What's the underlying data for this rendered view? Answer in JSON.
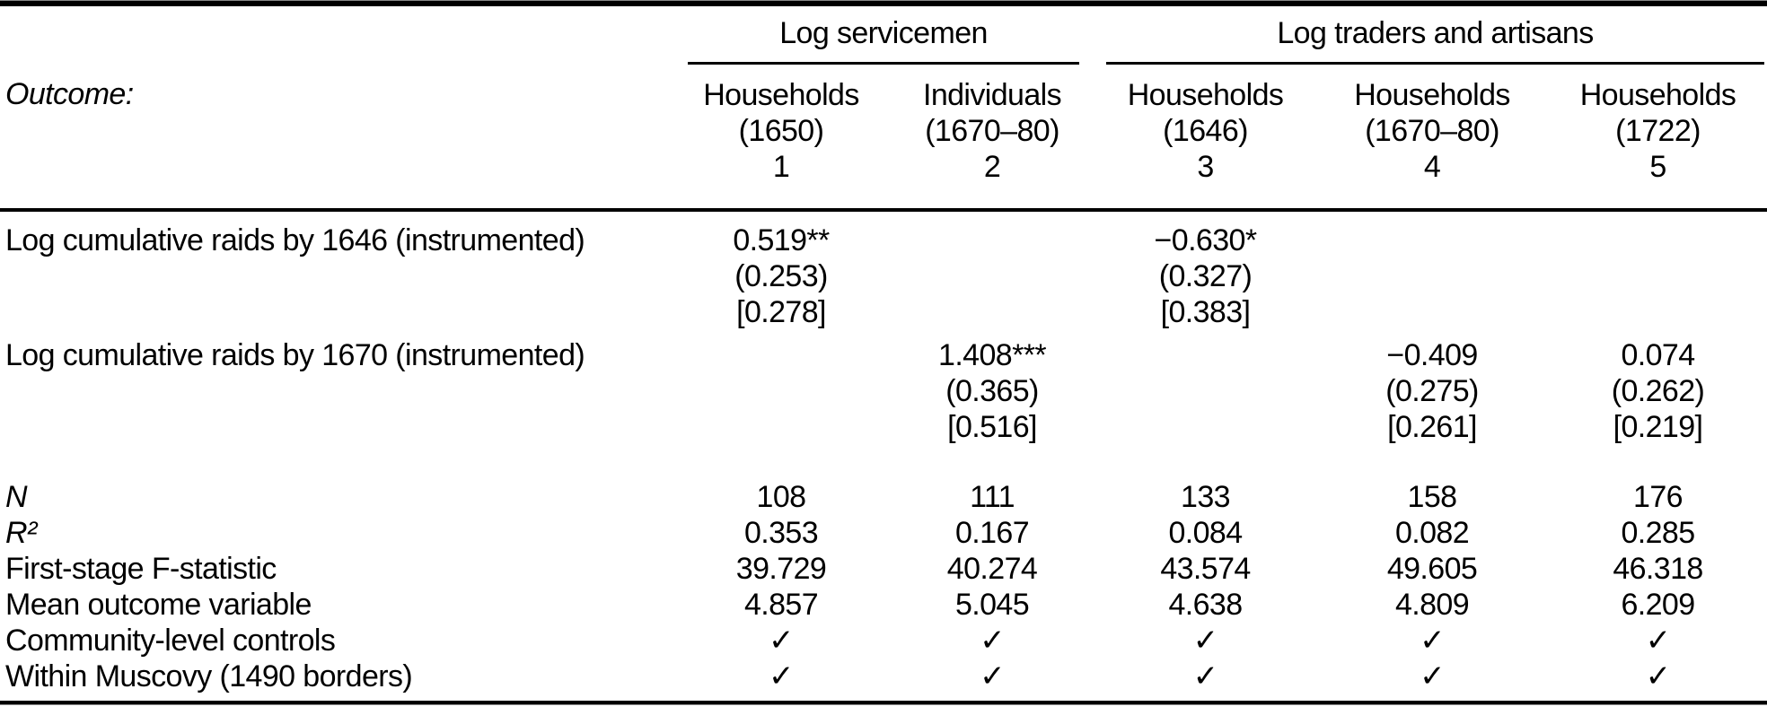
{
  "table": {
    "outcome_label": "Outcome:",
    "groups": [
      {
        "label": "Log servicemen",
        "span": 2
      },
      {
        "label": "Log traders and artisans",
        "span": 3
      }
    ],
    "columns": [
      "Households\n(1650)\n1",
      "Individuals\n(1670–80)\n2",
      "Households\n(1646)\n3",
      "Households\n(1670–80)\n4",
      "Households\n(1722)\n5"
    ],
    "coef_rows": [
      {
        "label": "Log cumulative raids by 1646 (instrumented)",
        "cells": [
          "0.519**\n(0.253)\n[0.278]",
          "",
          "−0.630*\n(0.327)\n[0.383]",
          "",
          ""
        ]
      },
      {
        "label": "Log cumulative raids by 1670 (instrumented)",
        "cells": [
          "",
          "1.408***\n(0.365)\n[0.516]",
          "",
          "−0.409\n(0.275)\n[0.261]",
          "0.074\n(0.262)\n[0.219]"
        ]
      }
    ],
    "stat_rows": [
      {
        "label": "N",
        "cells": [
          "108",
          "111",
          "133",
          "158",
          "176"
        ]
      },
      {
        "label": "R²",
        "cells": [
          "0.353",
          "0.167",
          "0.084",
          "0.082",
          "0.285"
        ]
      },
      {
        "label": "First-stage F-statistic",
        "cells": [
          "39.729",
          "40.274",
          "43.574",
          "49.605",
          "46.318"
        ]
      },
      {
        "label": "Mean outcome variable",
        "cells": [
          "4.857",
          "5.045",
          "4.638",
          "4.809",
          "6.209"
        ]
      },
      {
        "label": "Community-level controls",
        "cells": [
          "✓",
          "✓",
          "✓",
          "✓",
          "✓"
        ]
      },
      {
        "label": "Within Muscovy (1490 borders)",
        "cells": [
          "✓",
          "✓",
          "✓",
          "✓",
          "✓"
        ]
      }
    ]
  }
}
